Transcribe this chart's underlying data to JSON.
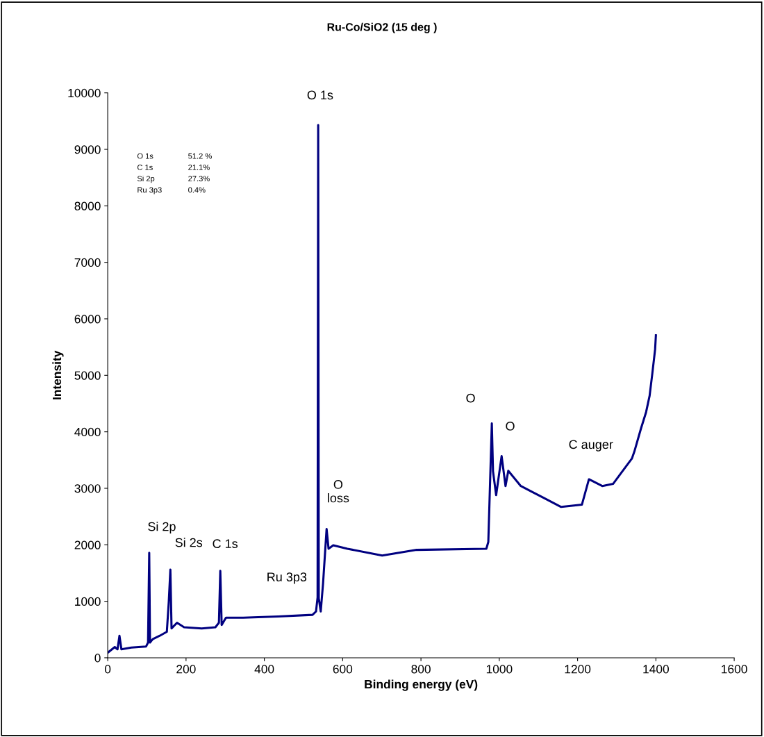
{
  "chart_data": {
    "type": "line",
    "title": "Ru-Co/SiO2 (15 deg )",
    "xlabel": "Binding energy (eV)",
    "ylabel": "Intensity",
    "xlim": [
      0,
      1600
    ],
    "xticks": [
      0,
      200,
      400,
      600,
      800,
      1000,
      1200,
      1400,
      1600
    ],
    "ylim": [
      0,
      10000
    ],
    "yticks": [
      0,
      1000,
      2000,
      3000,
      4000,
      5000,
      6000,
      7000,
      8000,
      9000,
      10000
    ],
    "grid": false,
    "legend": false,
    "marker": "none",
    "line_style": "solid",
    "series": [
      {
        "color": "#000080",
        "x": [
          0,
          18,
          25,
          30,
          35,
          60,
          98,
          103,
          106,
          108,
          115,
          133,
          151,
          156,
          160,
          163,
          177,
          195,
          240,
          275,
          284,
          287.5,
          291,
          302,
          346,
          435,
          523,
          532,
          536,
          537.5,
          539,
          544,
          550,
          559,
          564,
          576,
          612,
          701,
          789,
          967,
          972,
          981,
          984,
          992,
          1006,
          1016,
          1023,
          1055,
          1114,
          1158,
          1211,
          1229,
          1263,
          1291,
          1309,
          1339,
          1345,
          1362,
          1375,
          1384,
          1391,
          1398,
          1400
        ],
        "values": [
          90,
          190,
          150,
          390,
          150,
          180,
          200,
          270,
          1860,
          270,
          330,
          390,
          460,
          1000,
          1560,
          520,
          620,
          540,
          520,
          540,
          620,
          1540,
          580,
          710,
          710,
          730,
          760,
          820,
          1070,
          9430,
          1050,
          820,
          1320,
          2280,
          1930,
          1990,
          1930,
          1810,
          1910,
          1930,
          2050,
          4150,
          3300,
          2880,
          3570,
          3040,
          3310,
          3040,
          2830,
          2670,
          2710,
          3160,
          3040,
          3080,
          3250,
          3530,
          3650,
          4060,
          4350,
          4640,
          5040,
          5460,
          5710
        ]
      }
    ],
    "annotations": [
      {
        "text": "O 1s",
        "x": 537.5,
        "y": 9430
      },
      {
        "text": "Si 2p",
        "x": 106,
        "y": 1860
      },
      {
        "text": "Si 2s",
        "x": 160,
        "y": 1560
      },
      {
        "text": "C 1s",
        "x": 287.5,
        "y": 1540
      },
      {
        "text": "Ru 3p3",
        "x": 536,
        "y": 1070
      },
      {
        "text": "O\nloss",
        "x": 559,
        "y": 2280
      },
      {
        "text": "O",
        "x": 981,
        "y": 4150
      },
      {
        "text": "O",
        "x": 981,
        "y": 4150
      },
      {
        "text": "C auger",
        "x": 1229,
        "y": 3160
      },
      "O 1s",
      "51.2 %",
      "C 1s",
      "21.1%",
      "Si 2p",
      "27.3%",
      "Ru 3p3",
      "0.4%"
    ]
  }
}
